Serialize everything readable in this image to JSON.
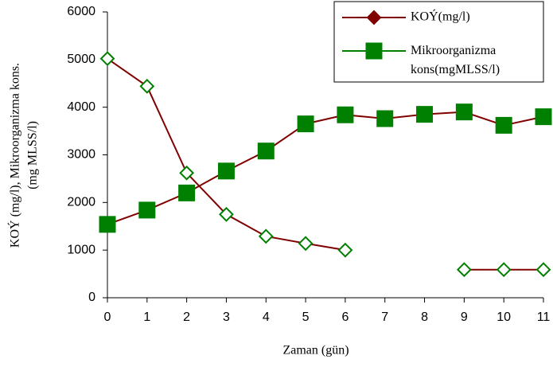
{
  "chart_data": {
    "type": "line",
    "xlabel": "Zaman (gün)",
    "ylabel": [
      "KOÝ  (mg/l), Mikroorganizma  kons.",
      "(mg MLSS/l)"
    ],
    "x": [
      0,
      1,
      2,
      3,
      4,
      5,
      6,
      7,
      8,
      9,
      10,
      11
    ],
    "xlim": [
      0,
      11
    ],
    "xticks": [
      0,
      1,
      2,
      3,
      4,
      5,
      6,
      7,
      8,
      9,
      10,
      11
    ],
    "ylim": [
      0,
      6000
    ],
    "yticks": [
      0,
      1000,
      2000,
      3000,
      4000,
      5000,
      6000
    ],
    "legend": "top-right",
    "series": [
      {
        "name": "KOÝ(mg/l)",
        "color": "#800000",
        "marker": "diamond",
        "line_color": "#800000",
        "marker_color": "#008000",
        "marker_fill": "#ffffff",
        "values": [
          5020,
          4440,
          2620,
          1750,
          1290,
          1140,
          1000,
          null,
          null,
          590,
          590,
          590
        ]
      },
      {
        "name": "Mikroorganizma kons(mgMLSS/l)",
        "color": "#008000",
        "marker": "square",
        "line_color": "#800000",
        "marker_color": "#008000",
        "marker_fill": "#008000",
        "values": [
          1540,
          1840,
          2200,
          2660,
          3080,
          3650,
          3840,
          3760,
          3850,
          3900,
          3620,
          3800
        ]
      }
    ]
  }
}
